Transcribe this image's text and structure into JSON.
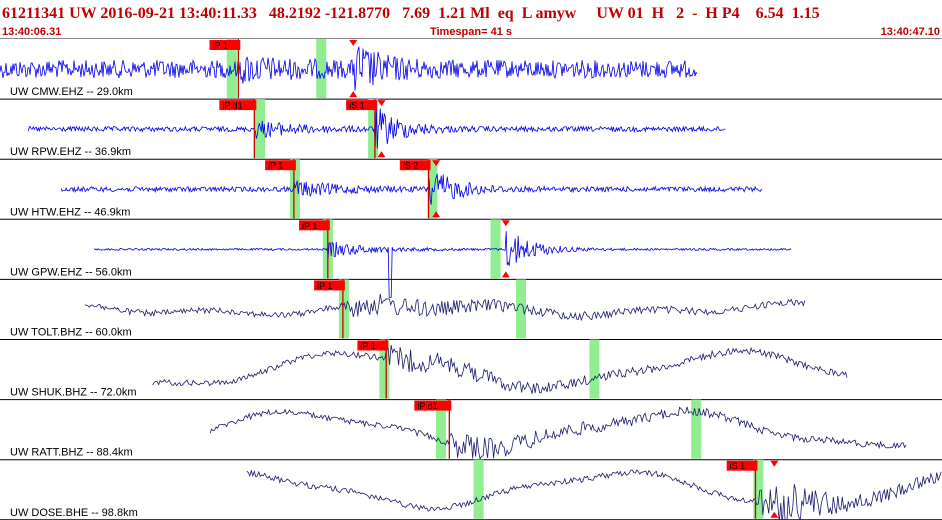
{
  "header": {
    "event_line": "61211341 UW 2016-09-21 13:40:11.33   48.2192 -121.8770   7.69  1.21 Ml  eq  L amyw     UW 01  H   2  -  H P4    6.54  1.15",
    "start_time": "13:40:06.31",
    "timespan": "Timespan=  41 s",
    "end_time": "13:40:47.10"
  },
  "colors": {
    "short_period_trace": "#0000ee",
    "broadband_trace": "#1c1c6e",
    "pick_box": "#ff0000",
    "pick_window": "#90ee90",
    "label_text": "#000000"
  },
  "traces": [
    {
      "label": "UW CMW.EHZ -- 29.0km",
      "type": "sp",
      "picks": [
        {
          "label": "iP 1",
          "t": 0.253
        }
      ],
      "windows": [
        0.245,
        0.34
      ],
      "s_marker": 0.375,
      "signal_start": 0.0,
      "signal_end": 0.74
    },
    {
      "label": "UW RPW.EHZ -- 36.9km",
      "type": "sp",
      "picks": [
        {
          "label": "iP d1",
          "t": 0.27
        },
        {
          "label": "iS 1",
          "t": 0.398
        }
      ],
      "windows": [
        0.275,
        0.395
      ],
      "s_marker": 0.405,
      "signal_start": 0.03,
      "signal_end": 0.77
    },
    {
      "label": "UW HTW.EHZ -- 46.9km",
      "type": "sp",
      "picks": [
        {
          "label": "iP 1",
          "t": 0.312
        },
        {
          "label": "iS 2",
          "t": 0.455
        }
      ],
      "windows": [
        0.312,
        0.458
      ],
      "s_marker": 0.463,
      "signal_start": 0.065,
      "signal_end": 0.81
    },
    {
      "label": "UW GPW.EHZ -- 56.0km",
      "type": "sp",
      "picks": [
        {
          "label": "iP 1",
          "t": 0.348
        }
      ],
      "windows": [
        0.347,
        0.525
      ],
      "s_marker": 0.537,
      "signal_start": 0.1,
      "signal_end": 0.84
    },
    {
      "label": "UW TOLT.BHZ -- 60.0km",
      "type": "bb",
      "picks": [
        {
          "label": "iP 1",
          "t": 0.364
        }
      ],
      "windows": [
        0.364,
        0.552
      ],
      "s_marker": null,
      "signal_start": 0.09,
      "signal_end": 0.855
    },
    {
      "label": "UW SHUK.BHZ -- 72.0km",
      "type": "bb",
      "picks": [
        {
          "label": "iP 1",
          "t": 0.41
        }
      ],
      "windows": [
        0.407,
        0.63
      ],
      "s_marker": null,
      "signal_start": 0.162,
      "signal_end": 0.9
    },
    {
      "label": "UW RATT.BHZ -- 88.4km",
      "type": "bb",
      "picks": [
        {
          "label": "iP d1",
          "t": 0.477
        }
      ],
      "windows": [
        0.467,
        0.738
      ],
      "s_marker": null,
      "signal_start": 0.223,
      "signal_end": 0.962
    },
    {
      "label": "UW DOSE.BHE -- 98.8km",
      "type": "bb",
      "picks": [
        {
          "label": "iS 1",
          "t": 0.802
        }
      ],
      "windows": [
        0.507,
        0.804
      ],
      "s_marker": 0.822,
      "signal_start": 0.262,
      "signal_end": 1.0
    }
  ]
}
